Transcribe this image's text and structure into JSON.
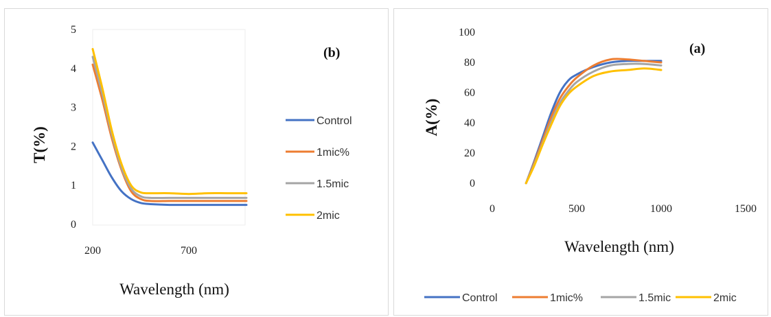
{
  "colors": {
    "control": "#4472C4",
    "mic1": "#ED7D31",
    "mic15": "#A5A5A5",
    "mic2": "#FFC000"
  },
  "chart_data": [
    {
      "panel": "b",
      "tag": "(b)",
      "type": "line",
      "xlabel": "Wavelength (nm)",
      "ylabel": "T(%)",
      "xticks": [
        "200",
        "700"
      ],
      "yticks": [
        "0",
        "1",
        "2",
        "3",
        "4",
        "5"
      ],
      "xlim": [
        200,
        1100
      ],
      "ylim": [
        0,
        5
      ],
      "legend_position": "right",
      "series": [
        {
          "name": "Control",
          "color_key": "control",
          "x": [
            200,
            250,
            300,
            350,
            400,
            450,
            500,
            600,
            700,
            800,
            900,
            1000
          ],
          "y": [
            2.1,
            1.65,
            1.2,
            0.85,
            0.65,
            0.55,
            0.52,
            0.5,
            0.5,
            0.5,
            0.5,
            0.5
          ]
        },
        {
          "name": "1mic%",
          "color_key": "mic1",
          "x": [
            200,
            250,
            300,
            350,
            400,
            450,
            500,
            600,
            700,
            800,
            900,
            1000
          ],
          "y": [
            4.1,
            3.2,
            2.2,
            1.4,
            0.85,
            0.65,
            0.6,
            0.6,
            0.6,
            0.6,
            0.6,
            0.6
          ]
        },
        {
          "name": "1.5mic",
          "color_key": "mic15",
          "x": [
            200,
            250,
            300,
            350,
            400,
            450,
            500,
            600,
            700,
            800,
            900,
            1000
          ],
          "y": [
            4.3,
            3.35,
            2.3,
            1.45,
            0.92,
            0.72,
            0.68,
            0.68,
            0.68,
            0.68,
            0.68,
            0.68
          ]
        },
        {
          "name": "2mic",
          "color_key": "mic2",
          "x": [
            200,
            250,
            300,
            350,
            400,
            450,
            500,
            600,
            700,
            800,
            900,
            1000
          ],
          "y": [
            4.5,
            3.5,
            2.4,
            1.55,
            1.0,
            0.82,
            0.8,
            0.8,
            0.78,
            0.8,
            0.8,
            0.8
          ]
        }
      ]
    },
    {
      "panel": "a",
      "tag": "(a)",
      "type": "line",
      "xlabel": "Wavelength (nm)",
      "ylabel": "A(%)",
      "xticks": [
        "0",
        "500",
        "1000",
        "1500"
      ],
      "yticks": [
        "0",
        "20",
        "40",
        "60",
        "80",
        "100"
      ],
      "xlim": [
        0,
        1500
      ],
      "ylim": [
        0,
        100
      ],
      "legend_position": "bottom",
      "series": [
        {
          "name": "Control",
          "color_key": "control",
          "x": [
            200,
            250,
            300,
            350,
            400,
            450,
            500,
            600,
            700,
            800,
            900,
            1000
          ],
          "y": [
            0,
            15,
            31,
            47,
            60,
            68,
            72,
            77,
            80,
            81,
            81,
            81
          ]
        },
        {
          "name": "1mic%",
          "color_key": "mic1",
          "x": [
            200,
            250,
            300,
            350,
            400,
            450,
            500,
            600,
            700,
            800,
            900,
            1000
          ],
          "y": [
            0,
            14,
            29,
            44,
            56,
            64,
            70,
            78,
            82,
            82,
            81,
            80
          ]
        },
        {
          "name": "1.5mic",
          "color_key": "mic15",
          "x": [
            200,
            250,
            300,
            350,
            400,
            450,
            500,
            600,
            700,
            800,
            900,
            1000
          ],
          "y": [
            0,
            13,
            27,
            41,
            53,
            61,
            67,
            74,
            78,
            79,
            79,
            78
          ]
        },
        {
          "name": "2mic",
          "color_key": "mic2",
          "x": [
            200,
            250,
            300,
            350,
            400,
            450,
            500,
            600,
            700,
            800,
            900,
            1000
          ],
          "y": [
            0,
            12,
            26,
            39,
            51,
            59,
            64,
            71,
            74,
            75,
            76,
            75
          ]
        }
      ]
    }
  ]
}
